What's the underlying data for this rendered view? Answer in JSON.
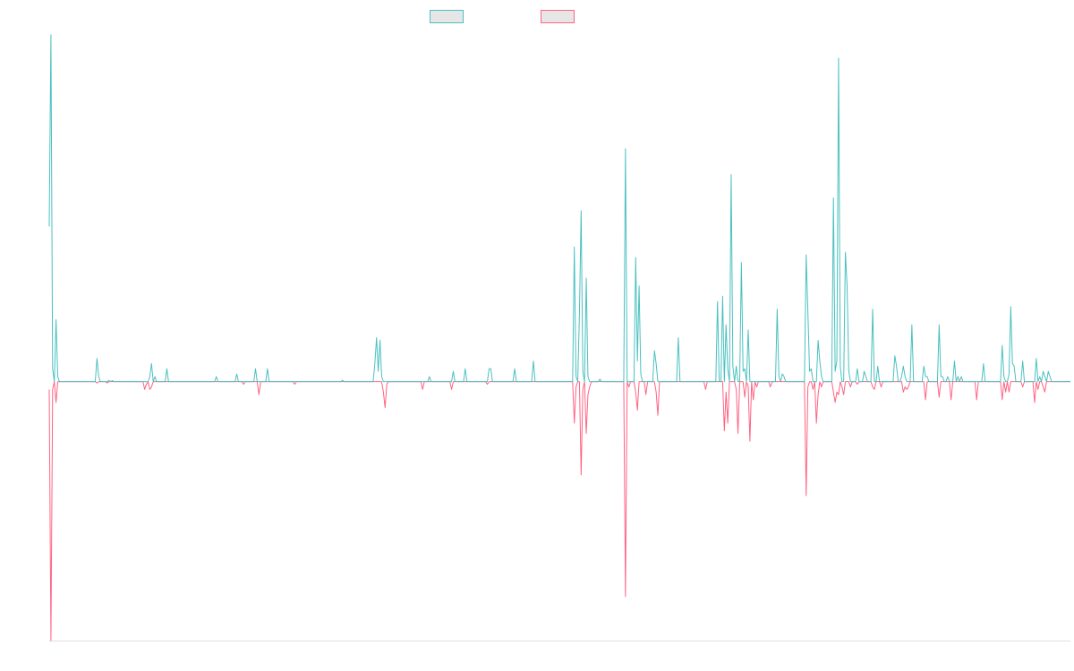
{
  "chart_data": {
    "type": "line",
    "title": "",
    "xlabel": "",
    "ylabel": "",
    "x_count": 600,
    "ylim": [
      -1.0,
      1.35
    ],
    "grid": false,
    "legend_position": "top-center",
    "colors": {
      "series_up": "#4bc0c0",
      "series_down": "#ff6384",
      "legend_fill": "#e6e6e6",
      "axis": "#e0e0e0"
    },
    "series": [
      {
        "name": "",
        "color": "#4bc0c0",
        "spikes": [
          [
            0,
            0.6
          ],
          [
            1,
            1.34
          ],
          [
            2,
            0.05
          ],
          [
            4,
            0.24
          ],
          [
            5,
            0.02
          ],
          [
            28,
            0.09
          ],
          [
            29,
            0.02
          ],
          [
            35,
            0.005
          ],
          [
            37,
            0.004
          ],
          [
            59,
            0.02
          ],
          [
            60,
            0.07
          ],
          [
            62,
            0.02
          ],
          [
            69,
            0.05
          ],
          [
            98,
            0.02
          ],
          [
            110,
            0.03
          ],
          [
            121,
            0.05
          ],
          [
            128,
            0.05
          ],
          [
            172,
            0.005
          ],
          [
            191,
            0.07
          ],
          [
            192,
            0.17
          ],
          [
            193,
            0.04
          ],
          [
            194,
            0.16
          ],
          [
            195,
            0.02
          ],
          [
            223,
            0.02
          ],
          [
            237,
            0.04
          ],
          [
            244,
            0.05
          ],
          [
            258,
            0.05
          ],
          [
            259,
            0.05
          ],
          [
            273,
            0.05
          ],
          [
            284,
            0.08
          ],
          [
            308,
            0.52
          ],
          [
            309,
            0.02
          ],
          [
            311,
            0.26
          ],
          [
            312,
            0.66
          ],
          [
            313,
            0.04
          ],
          [
            315,
            0.4
          ],
          [
            316,
            0.02
          ],
          [
            323,
            0.01
          ],
          [
            338,
            0.9
          ],
          [
            344,
            0.48
          ],
          [
            345,
            0.08
          ],
          [
            346,
            0.37
          ],
          [
            347,
            0.03
          ],
          [
            355,
            0.12
          ],
          [
            356,
            0.07
          ],
          [
            369,
            0.17
          ],
          [
            392,
            0.31
          ],
          [
            395,
            0.33
          ],
          [
            397,
            0.22
          ],
          [
            398,
            0.05
          ],
          [
            400,
            0.8
          ],
          [
            401,
            0.06
          ],
          [
            403,
            0.06
          ],
          [
            406,
            0.46
          ],
          [
            407,
            0.04
          ],
          [
            408,
            0.05
          ],
          [
            410,
            0.2
          ],
          [
            427,
            0.28
          ],
          [
            428,
            0.02
          ],
          [
            430,
            0.03
          ],
          [
            431,
            0.02
          ],
          [
            444,
            0.49
          ],
          [
            445,
            0.27
          ],
          [
            446,
            0.04
          ],
          [
            447,
            0.05
          ],
          [
            451,
            0.16
          ],
          [
            452,
            0.08
          ],
          [
            453,
            0.02
          ],
          [
            460,
            0.71
          ],
          [
            461,
            0.04
          ],
          [
            462,
            0.08
          ],
          [
            463,
            1.25
          ],
          [
            464,
            0.06
          ],
          [
            467,
            0.5
          ],
          [
            468,
            0.37
          ],
          [
            469,
            0.04
          ],
          [
            474,
            0.05
          ],
          [
            478,
            0.04
          ],
          [
            479,
            0.02
          ],
          [
            483,
            0.28
          ],
          [
            486,
            0.06
          ],
          [
            496,
            0.1
          ],
          [
            497,
            0.06
          ],
          [
            500,
            0.02
          ],
          [
            501,
            0.06
          ],
          [
            502,
            0.02
          ],
          [
            506,
            0.22
          ],
          [
            513,
            0.06
          ],
          [
            514,
            0.02
          ],
          [
            515,
            0.02
          ],
          [
            522,
            0.22
          ],
          [
            523,
            0.02
          ],
          [
            524,
            0.02
          ],
          [
            527,
            0.02
          ],
          [
            531,
            0.08
          ],
          [
            533,
            0.02
          ],
          [
            535,
            0.02
          ],
          [
            548,
            0.07
          ],
          [
            559,
            0.14
          ],
          [
            560,
            0.02
          ],
          [
            563,
            0.03
          ],
          [
            564,
            0.29
          ],
          [
            565,
            0.07
          ],
          [
            566,
            0.06
          ],
          [
            571,
            0.08
          ],
          [
            579,
            0.09
          ],
          [
            581,
            0.02
          ],
          [
            583,
            0.04
          ],
          [
            584,
            0.02
          ],
          [
            586,
            0.04
          ],
          [
            587,
            0.02
          ]
        ]
      },
      {
        "name": "",
        "color": "#ff6384",
        "spikes": [
          [
            0,
            -0.03
          ],
          [
            1,
            -1.0
          ],
          [
            2,
            -0.03
          ],
          [
            4,
            -0.08
          ],
          [
            28,
            -0.005
          ],
          [
            34,
            -0.005
          ],
          [
            56,
            -0.03
          ],
          [
            57,
            -0.01
          ],
          [
            59,
            -0.03
          ],
          [
            60,
            -0.02
          ],
          [
            114,
            -0.01
          ],
          [
            123,
            -0.05
          ],
          [
            144,
            -0.01
          ],
          [
            196,
            -0.04
          ],
          [
            197,
            -0.1
          ],
          [
            198,
            -0.01
          ],
          [
            219,
            -0.03
          ],
          [
            236,
            -0.03
          ],
          [
            257,
            -0.01
          ],
          [
            308,
            -0.16
          ],
          [
            309,
            -0.02
          ],
          [
            312,
            -0.36
          ],
          [
            313,
            -0.03
          ],
          [
            315,
            -0.2
          ],
          [
            316,
            -0.05
          ],
          [
            317,
            -0.02
          ],
          [
            338,
            -0.83
          ],
          [
            340,
            -0.02
          ],
          [
            344,
            -0.04
          ],
          [
            345,
            -0.11
          ],
          [
            350,
            -0.05
          ],
          [
            356,
            -0.04
          ],
          [
            357,
            -0.13
          ],
          [
            385,
            -0.03
          ],
          [
            396,
            -0.19
          ],
          [
            397,
            -0.04
          ],
          [
            398,
            -0.16
          ],
          [
            403,
            -0.03
          ],
          [
            404,
            -0.2
          ],
          [
            408,
            -0.06
          ],
          [
            410,
            -0.02
          ],
          [
            411,
            -0.23
          ],
          [
            413,
            -0.07
          ],
          [
            415,
            -0.02
          ],
          [
            423,
            -0.02
          ],
          [
            444,
            -0.44
          ],
          [
            445,
            -0.02
          ],
          [
            448,
            -0.03
          ],
          [
            450,
            -0.16
          ],
          [
            451,
            -0.05
          ],
          [
            453,
            -0.02
          ],
          [
            460,
            -0.04
          ],
          [
            461,
            -0.08
          ],
          [
            462,
            -0.04
          ],
          [
            463,
            -0.05
          ],
          [
            465,
            -0.02
          ],
          [
            466,
            -0.05
          ],
          [
            470,
            -0.02
          ],
          [
            474,
            -0.01
          ],
          [
            483,
            -0.02
          ],
          [
            484,
            -0.03
          ],
          [
            488,
            -0.02
          ],
          [
            501,
            -0.04
          ],
          [
            502,
            -0.02
          ],
          [
            503,
            -0.03
          ],
          [
            504,
            -0.02
          ],
          [
            514,
            -0.07
          ],
          [
            522,
            -0.06
          ],
          [
            529,
            -0.07
          ],
          [
            544,
            -0.07
          ],
          [
            559,
            -0.07
          ],
          [
            561,
            -0.04
          ],
          [
            563,
            -0.04
          ],
          [
            571,
            -0.02
          ],
          [
            578,
            -0.08
          ],
          [
            580,
            -0.03
          ],
          [
            583,
            -0.02
          ],
          [
            584,
            -0.04
          ]
        ]
      }
    ]
  }
}
